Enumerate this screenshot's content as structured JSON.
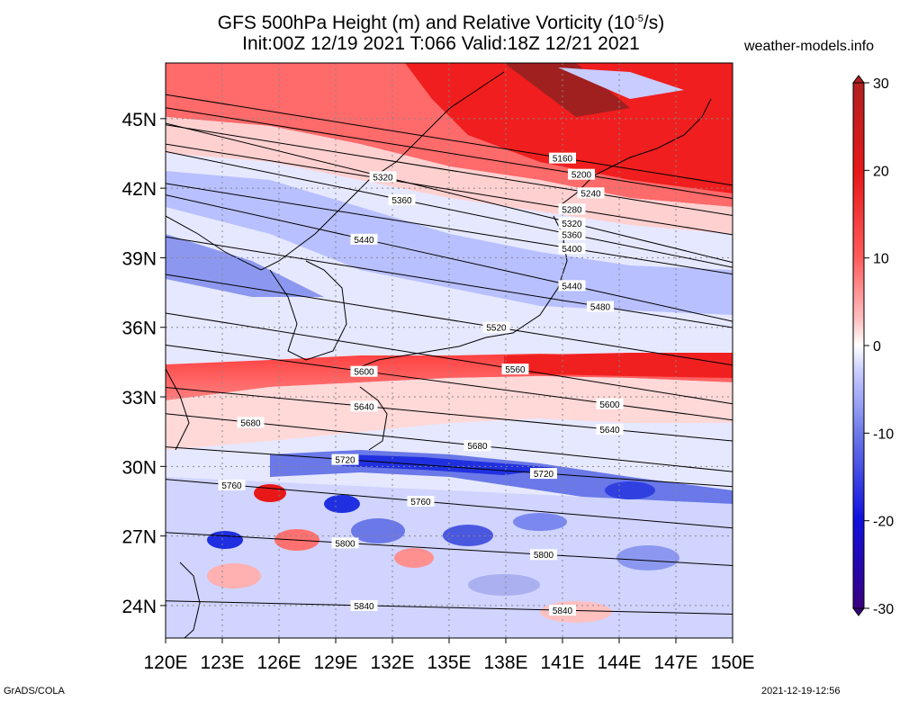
{
  "title_line1": "GFS 500hPa Height (m) and Relative Vorticity (10",
  "title_exp": "-5",
  "title_line1_end": "/s)",
  "title_line2": "Init:00Z 12/19 2021 T:066 Valid:18Z 12/21 2021",
  "site": "weather-models.info",
  "footer_left": "GrADS/COLA",
  "footer_right": "2021-12-19-12:56",
  "lat_labels": [
    "45N",
    "42N",
    "39N",
    "36N",
    "33N",
    "30N",
    "27N",
    "24N"
  ],
  "lon_labels": [
    "120E",
    "123E",
    "126E",
    "129E",
    "132E",
    "135E",
    "138E",
    "141E",
    "144E",
    "147E",
    "150E"
  ],
  "colorbar": {
    "ticks": [
      "30",
      "20",
      "10",
      "0",
      "-10",
      "-20",
      "-30"
    ],
    "colors_top_to_bottom": [
      "#b02020",
      "#e81818",
      "#ff3030",
      "#ff7070",
      "#ffaaaa",
      "#ffd8d8",
      "#ffffff",
      "#d8d8ff",
      "#aab0f0",
      "#6a78e8",
      "#1e2ee0",
      "#1010b0",
      "#3a0080"
    ]
  },
  "contours": [
    {
      "value": "5160",
      "labels": [
        [
          141,
          43.3
        ]
      ]
    },
    {
      "value": "5200",
      "labels": [
        [
          142,
          42.6
        ]
      ]
    },
    {
      "value": "5240",
      "labels": [
        [
          142.5,
          41.8
        ]
      ]
    },
    {
      "value": "5280",
      "labels": [
        [
          141.5,
          41.1
        ]
      ]
    },
    {
      "value": "5320",
      "labels": [
        [
          131.5,
          42.5
        ],
        [
          141.5,
          40.5
        ]
      ]
    },
    {
      "value": "5360",
      "labels": [
        [
          132.5,
          41.5
        ],
        [
          141.5,
          40.0
        ]
      ]
    },
    {
      "value": "5400",
      "labels": [
        [
          141.5,
          39.4
        ]
      ]
    },
    {
      "value": "5440",
      "labels": [
        [
          130.5,
          39.8
        ],
        [
          141.5,
          37.8
        ]
      ]
    },
    {
      "value": "5480",
      "labels": [
        [
          143,
          36.9
        ]
      ]
    },
    {
      "value": "5520",
      "labels": [
        [
          137.5,
          36.0
        ]
      ]
    },
    {
      "value": "5560",
      "labels": [
        [
          138.5,
          34.2
        ]
      ]
    },
    {
      "value": "5600",
      "labels": [
        [
          130.5,
          34.1
        ],
        [
          143.5,
          32.7
        ]
      ]
    },
    {
      "value": "5640",
      "labels": [
        [
          130.5,
          32.6
        ],
        [
          143.5,
          31.6
        ]
      ]
    },
    {
      "value": "5680",
      "labels": [
        [
          124.5,
          31.9
        ],
        [
          136.5,
          30.9
        ]
      ]
    },
    {
      "value": "5720",
      "labels": [
        [
          129.5,
          30.3
        ],
        [
          140,
          29.7
        ]
      ]
    },
    {
      "value": "5760",
      "labels": [
        [
          123.5,
          29.2
        ],
        [
          133.5,
          28.5
        ]
      ]
    },
    {
      "value": "5800",
      "labels": [
        [
          129.5,
          26.7
        ],
        [
          140,
          26.2
        ]
      ]
    },
    {
      "value": "5840",
      "labels": [
        [
          130.5,
          24.0
        ],
        [
          141,
          23.8
        ]
      ]
    }
  ]
}
